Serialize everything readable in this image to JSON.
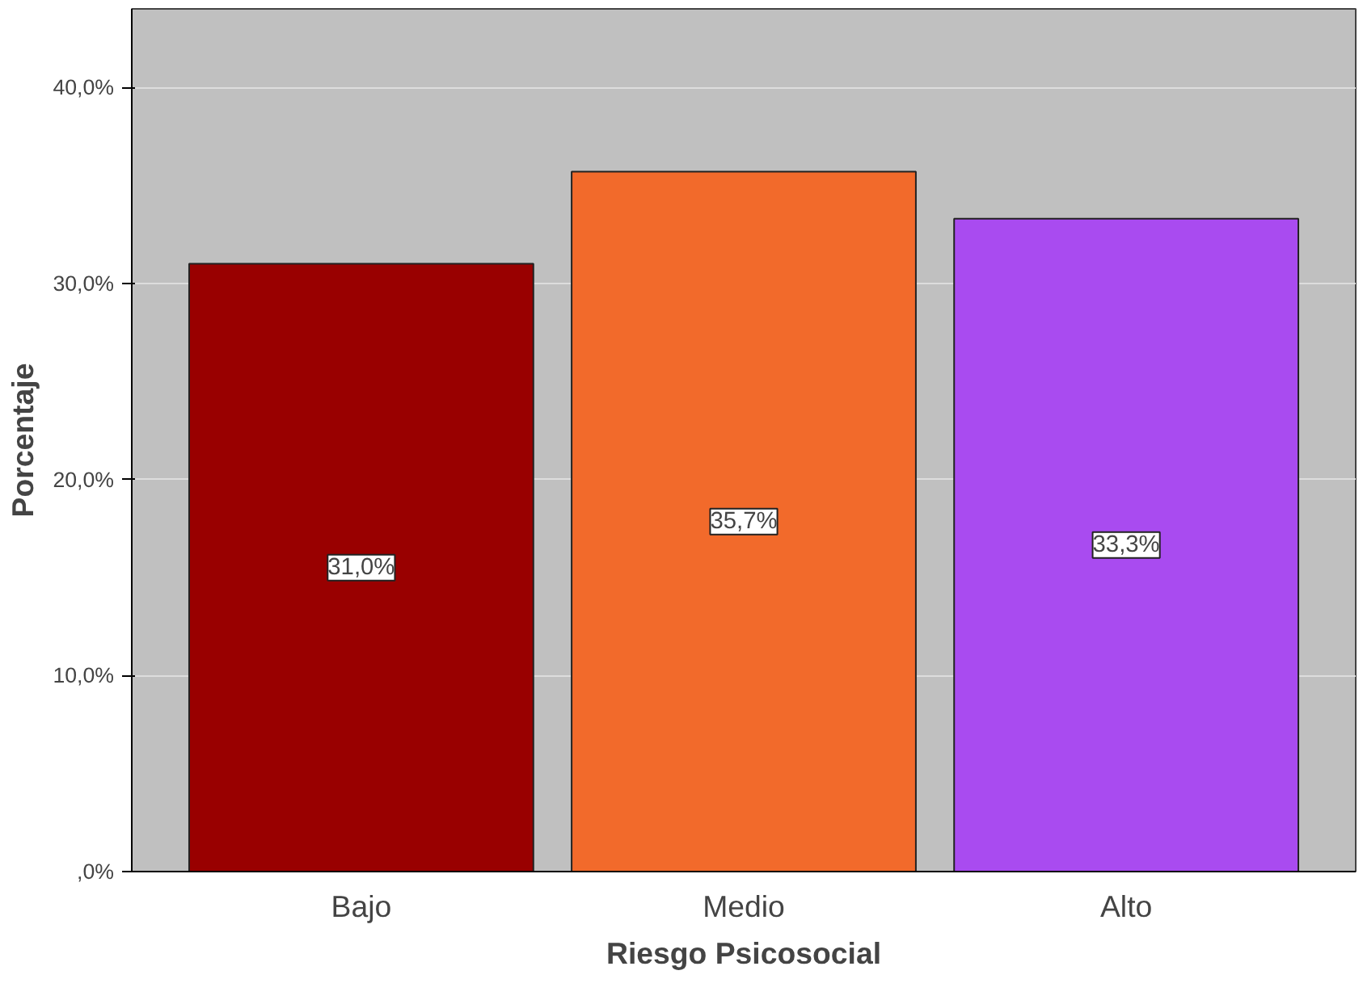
{
  "chart_data": {
    "type": "bar",
    "xlabel": "Riesgo Psicosocial",
    "ylabel": "Porcentaje",
    "categories": [
      "Bajo",
      "Medio",
      "Alto"
    ],
    "values": [
      31.0,
      35.7,
      33.3
    ],
    "colors": [
      "#990000",
      "#f26a2b",
      "#a94bf0"
    ],
    "value_labels": [
      "31,0%",
      "35,7%",
      "33,3%"
    ],
    "ylim": [
      0,
      44
    ],
    "yticks": [
      {
        "value": 0,
        "label": ",0%"
      },
      {
        "value": 10,
        "label": "10,0%"
      },
      {
        "value": 20,
        "label": "20,0%"
      },
      {
        "value": 30,
        "label": "30,0%"
      },
      {
        "value": 40,
        "label": "40,0%"
      }
    ],
    "grid": "y"
  }
}
